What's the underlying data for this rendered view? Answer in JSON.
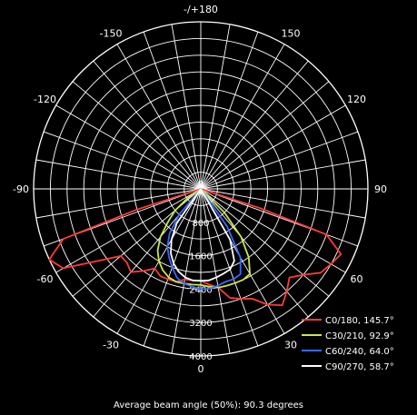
{
  "chart_data": {
    "type": "polar",
    "angle_labels": [
      "0",
      "30",
      "-30",
      "60",
      "-60",
      "90",
      "-90",
      "120",
      "-120",
      "150",
      "-150",
      "-/+180"
    ],
    "radial_labels": [
      "800",
      "1600",
      "2400",
      "3200",
      "4000"
    ],
    "series": [
      {
        "name": "C0/180,  145.7°",
        "color": "#ff3b3b",
        "angles": [
          -75,
          -72,
          -70,
          -65,
          -60,
          -55,
          -50,
          -45,
          -40,
          -35,
          -30,
          -25,
          -20,
          -15,
          -10,
          -5,
          0,
          5,
          10,
          15,
          20,
          25,
          30,
          35,
          40,
          45,
          50,
          55,
          60,
          65,
          70,
          72,
          75
        ],
        "values": [
          0,
          1600,
          3500,
          4000,
          3800,
          3000,
          2500,
          2500,
          2600,
          2400,
          2200,
          2300,
          2300,
          2300,
          2200,
          2200,
          2200,
          2300,
          2400,
          2700,
          2800,
          2900,
          3200,
          3400,
          3200,
          3000,
          3200,
          3500,
          3600,
          3700,
          3200,
          1500,
          0
        ]
      },
      {
        "name": "C30/210,  92.9°",
        "color": "#c8e84a",
        "angles": [
          -60,
          -55,
          -50,
          -45,
          -40,
          -35,
          -30,
          -25,
          -20,
          -15,
          -10,
          -5,
          0,
          5,
          10,
          15,
          20,
          25,
          30,
          35,
          40,
          45,
          50
        ],
        "values": [
          0,
          400,
          800,
          1100,
          1500,
          1800,
          2000,
          2150,
          2250,
          2300,
          2300,
          2300,
          2300,
          2350,
          2400,
          2400,
          2400,
          2400,
          2350,
          2000,
          1500,
          800,
          0
        ]
      },
      {
        "name": "C60/240,  64.0°",
        "color": "#3b68ff",
        "angles": [
          -45,
          -40,
          -35,
          -30,
          -25,
          -20,
          -15,
          -10,
          -5,
          0,
          5,
          10,
          15,
          20,
          25,
          30,
          35,
          40
        ],
        "values": [
          0,
          800,
          1300,
          1600,
          1800,
          2000,
          2200,
          2300,
          2350,
          2400,
          2400,
          2350,
          2300,
          2300,
          2250,
          1900,
          1100,
          0
        ]
      },
      {
        "name": "C90/270,  58.7°",
        "color": "#ffffff",
        "angles": [
          -40,
          -35,
          -30,
          -25,
          -20,
          -15,
          -10,
          -5,
          0,
          5,
          10,
          15,
          20,
          25,
          30,
          35
        ],
        "values": [
          0,
          1000,
          1400,
          1700,
          1900,
          2050,
          2150,
          2200,
          2200,
          2200,
          2150,
          2100,
          2050,
          1900,
          1400,
          0
        ]
      }
    ],
    "rmax": 4000,
    "grid": true
  },
  "caption": "Average beam angle (50%): 90.3 degrees"
}
